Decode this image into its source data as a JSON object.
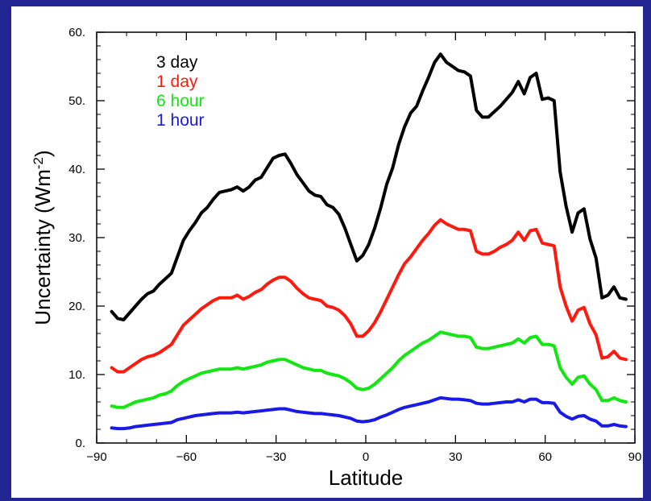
{
  "chart_data": {
    "type": "line",
    "xlabel": "Latitude",
    "ylabel_main": "Uncertainty (Wm",
    "ylabel_sup": "-2",
    "ylabel_tail": ")",
    "xlim": [
      -90,
      90
    ],
    "ylim": [
      0,
      60
    ],
    "xticks": [
      -90,
      -60,
      -30,
      0,
      30,
      60,
      90
    ],
    "xtick_labels": [
      "−90",
      "−60",
      "−30",
      "0",
      "30",
      "60",
      "90"
    ],
    "yticks": [
      0,
      10,
      20,
      30,
      40,
      50,
      60
    ],
    "ytick_labels": [
      "0.",
      "10.",
      "20.",
      "30.",
      "40.",
      "50.",
      "60."
    ],
    "grid": false,
    "legend_position": "top-left",
    "series": [
      {
        "name": "3 day",
        "color": "#000000",
        "x": [
          -85,
          -83,
          -81,
          -79,
          -77,
          -75,
          -73,
          -71,
          -69,
          -67,
          -65,
          -63,
          -61,
          -59,
          -57,
          -55,
          -53,
          -51,
          -49,
          -47,
          -45,
          -43,
          -41,
          -39,
          -37,
          -35,
          -33,
          -31,
          -29,
          -27,
          -25,
          -23,
          -21,
          -19,
          -17,
          -15,
          -13,
          -11,
          -9,
          -7,
          -5,
          -3,
          -1,
          1,
          3,
          5,
          7,
          9,
          11,
          13,
          15,
          17,
          19,
          21,
          23,
          25,
          27,
          29,
          31,
          33,
          35,
          37,
          39,
          41,
          43,
          45,
          47,
          49,
          51,
          53,
          55,
          57,
          59,
          61,
          63,
          65,
          67,
          69,
          71,
          73,
          75,
          77,
          79,
          81,
          83,
          85,
          87
        ],
        "y": [
          19.2,
          18.2,
          18.0,
          19.0,
          20.0,
          21.0,
          21.8,
          22.2,
          23.2,
          24.0,
          24.8,
          27.2,
          29.6,
          31.0,
          32.2,
          33.6,
          34.4,
          35.6,
          36.6,
          36.8,
          37.0,
          37.4,
          36.8,
          37.4,
          38.4,
          38.8,
          40.2,
          41.6,
          42.0,
          42.2,
          40.8,
          39.2,
          38.0,
          36.8,
          36.2,
          36.0,
          34.8,
          34.4,
          33.4,
          31.4,
          29.0,
          26.6,
          27.4,
          29.0,
          31.4,
          34.4,
          37.8,
          40.2,
          43.6,
          46.2,
          48.2,
          49.2,
          51.4,
          53.4,
          55.6,
          56.8,
          55.6,
          55.0,
          54.4,
          54.2,
          53.6,
          48.6,
          47.6,
          47.6,
          48.4,
          49.2,
          50.2,
          51.2,
          52.8,
          51.0,
          53.4,
          54.0,
          50.2,
          50.4,
          50.0,
          39.6,
          34.6,
          30.8,
          33.6,
          34.2,
          29.8,
          27.0,
          21.2,
          21.6,
          22.8,
          21.2,
          21.0
        ]
      },
      {
        "name": "1 day",
        "color": "#ff1a0f",
        "x": [
          -85,
          -83,
          -81,
          -79,
          -77,
          -75,
          -73,
          -71,
          -69,
          -67,
          -65,
          -63,
          -61,
          -59,
          -57,
          -55,
          -53,
          -51,
          -49,
          -47,
          -45,
          -43,
          -41,
          -39,
          -37,
          -35,
          -33,
          -31,
          -29,
          -27,
          -25,
          -23,
          -21,
          -19,
          -17,
          -15,
          -13,
          -11,
          -9,
          -7,
          -5,
          -3,
          -1,
          1,
          3,
          5,
          7,
          9,
          11,
          13,
          15,
          17,
          19,
          21,
          23,
          25,
          27,
          29,
          31,
          33,
          35,
          37,
          39,
          41,
          43,
          45,
          47,
          49,
          51,
          53,
          55,
          57,
          59,
          61,
          63,
          65,
          67,
          69,
          71,
          73,
          75,
          77,
          79,
          81,
          83,
          85,
          87
        ],
        "y": [
          11.0,
          10.4,
          10.4,
          11.0,
          11.6,
          12.2,
          12.6,
          12.8,
          13.2,
          13.8,
          14.4,
          15.8,
          17.2,
          18.0,
          18.8,
          19.6,
          20.2,
          20.8,
          21.2,
          21.2,
          21.2,
          21.6,
          21.0,
          21.4,
          22.0,
          22.4,
          23.2,
          23.8,
          24.2,
          24.2,
          23.6,
          22.6,
          21.8,
          21.2,
          21.0,
          20.8,
          20.0,
          19.8,
          19.4,
          18.6,
          17.4,
          15.6,
          15.6,
          16.4,
          17.6,
          19.2,
          21.0,
          22.8,
          24.6,
          26.2,
          27.2,
          28.4,
          29.6,
          30.6,
          31.8,
          32.6,
          32.0,
          31.6,
          31.2,
          31.2,
          31.0,
          28.0,
          27.6,
          27.6,
          28.0,
          28.6,
          29.0,
          29.6,
          30.8,
          29.6,
          31.0,
          31.2,
          29.2,
          29.0,
          28.8,
          22.8,
          20.0,
          17.8,
          19.4,
          19.8,
          17.4,
          15.8,
          12.4,
          12.6,
          13.4,
          12.4,
          12.2
        ]
      },
      {
        "name": "6 hour",
        "color": "#13e613",
        "x": [
          -85,
          -83,
          -81,
          -79,
          -77,
          -75,
          -73,
          -71,
          -69,
          -67,
          -65,
          -63,
          -61,
          -59,
          -57,
          -55,
          -53,
          -51,
          -49,
          -47,
          -45,
          -43,
          -41,
          -39,
          -37,
          -35,
          -33,
          -31,
          -29,
          -27,
          -25,
          -23,
          -21,
          -19,
          -17,
          -15,
          -13,
          -11,
          -9,
          -7,
          -5,
          -3,
          -1,
          1,
          3,
          5,
          7,
          9,
          11,
          13,
          15,
          17,
          19,
          21,
          23,
          25,
          27,
          29,
          31,
          33,
          35,
          37,
          39,
          41,
          43,
          45,
          47,
          49,
          51,
          53,
          55,
          57,
          59,
          61,
          63,
          65,
          67,
          69,
          71,
          73,
          75,
          77,
          79,
          81,
          83,
          85,
          87
        ],
        "y": [
          5.4,
          5.2,
          5.2,
          5.6,
          6.0,
          6.2,
          6.4,
          6.6,
          7.0,
          7.2,
          7.6,
          8.4,
          9.0,
          9.4,
          9.8,
          10.2,
          10.4,
          10.6,
          10.8,
          10.8,
          10.8,
          11.0,
          10.8,
          11.0,
          11.2,
          11.4,
          11.8,
          12.0,
          12.2,
          12.2,
          11.8,
          11.4,
          11.0,
          10.8,
          10.6,
          10.6,
          10.2,
          10.0,
          9.8,
          9.4,
          8.8,
          8.0,
          7.8,
          8.0,
          8.6,
          9.4,
          10.2,
          11.0,
          12.0,
          12.8,
          13.4,
          14.0,
          14.6,
          15.0,
          15.6,
          16.2,
          16.0,
          15.8,
          15.6,
          15.6,
          15.4,
          14.0,
          13.8,
          13.8,
          14.0,
          14.2,
          14.4,
          14.6,
          15.2,
          14.6,
          15.4,
          15.6,
          14.4,
          14.4,
          14.2,
          11.0,
          9.6,
          8.6,
          9.6,
          9.8,
          8.6,
          7.8,
          6.2,
          6.2,
          6.6,
          6.2,
          6.0
        ]
      },
      {
        "name": "1 hour",
        "color": "#1a1ae6",
        "x": [
          -85,
          -83,
          -81,
          -79,
          -77,
          -75,
          -73,
          -71,
          -69,
          -67,
          -65,
          -63,
          -61,
          -59,
          -57,
          -55,
          -53,
          -51,
          -49,
          -47,
          -45,
          -43,
          -41,
          -39,
          -37,
          -35,
          -33,
          -31,
          -29,
          -27,
          -25,
          -23,
          -21,
          -19,
          -17,
          -15,
          -13,
          -11,
          -9,
          -7,
          -5,
          -3,
          -1,
          1,
          3,
          5,
          7,
          9,
          11,
          13,
          15,
          17,
          19,
          21,
          23,
          25,
          27,
          29,
          31,
          33,
          35,
          37,
          39,
          41,
          43,
          45,
          47,
          49,
          51,
          53,
          55,
          57,
          59,
          61,
          63,
          65,
          67,
          69,
          71,
          73,
          75,
          77,
          79,
          81,
          83,
          85,
          87
        ],
        "y": [
          2.2,
          2.1,
          2.1,
          2.2,
          2.4,
          2.5,
          2.6,
          2.7,
          2.8,
          2.9,
          3.0,
          3.4,
          3.6,
          3.8,
          4.0,
          4.1,
          4.2,
          4.3,
          4.4,
          4.4,
          4.4,
          4.5,
          4.4,
          4.5,
          4.6,
          4.7,
          4.8,
          4.9,
          5.0,
          5.0,
          4.8,
          4.6,
          4.5,
          4.4,
          4.3,
          4.3,
          4.2,
          4.1,
          4.0,
          3.8,
          3.6,
          3.2,
          3.1,
          3.2,
          3.4,
          3.8,
          4.1,
          4.5,
          4.9,
          5.2,
          5.4,
          5.6,
          5.8,
          6.0,
          6.3,
          6.6,
          6.5,
          6.4,
          6.4,
          6.3,
          6.2,
          5.8,
          5.7,
          5.7,
          5.8,
          5.9,
          6.0,
          6.0,
          6.3,
          6.0,
          6.4,
          6.4,
          5.9,
          5.9,
          5.8,
          4.5,
          3.9,
          3.5,
          3.9,
          4.0,
          3.5,
          3.2,
          2.5,
          2.5,
          2.7,
          2.5,
          2.4
        ]
      }
    ]
  }
}
